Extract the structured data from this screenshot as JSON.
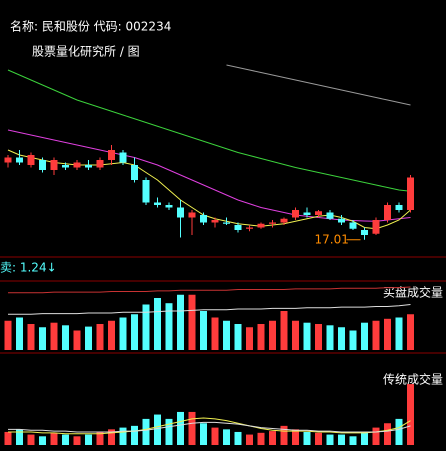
{
  "chart_data": [
    {
      "type": "candlestick",
      "title": "名称: 民和股份 代码: 002234",
      "subtitle": "股票量化研究所 / 图",
      "annotation": "17.01",
      "label": "卖: 1.24↓",
      "up_color": "#ff3c3c",
      "down_color": "#54ffff",
      "ylim": [
        16.6,
        26.6
      ],
      "open": [
        20.1,
        20.3,
        20.0,
        20.2,
        19.8,
        20.0,
        19.9,
        20.0,
        19.9,
        20.2,
        20.5,
        20.0,
        19.4,
        18.5,
        18.4,
        18.3,
        17.9,
        18.0,
        17.7,
        17.7,
        17.6,
        17.45,
        17.5,
        17.65,
        17.7,
        17.9,
        18.1,
        18.0,
        18.1,
        17.85,
        17.7,
        17.4,
        17.25,
        17.8,
        18.4,
        18.2
      ],
      "high": [
        20.4,
        20.6,
        20.5,
        20.3,
        20.3,
        20.1,
        20.2,
        20.2,
        20.3,
        20.8,
        20.6,
        20.3,
        19.5,
        18.7,
        18.5,
        18.6,
        18.2,
        18.1,
        17.9,
        17.9,
        17.7,
        17.6,
        17.7,
        17.8,
        17.9,
        18.3,
        18.3,
        18.2,
        18.2,
        18.0,
        17.8,
        17.5,
        17.9,
        18.5,
        18.5,
        19.6
      ],
      "low": [
        19.9,
        20.0,
        19.9,
        19.7,
        19.6,
        19.8,
        19.8,
        19.8,
        19.8,
        20.0,
        20.0,
        19.3,
        18.4,
        18.3,
        18.2,
        17.1,
        17.2,
        17.6,
        17.5,
        17.6,
        17.3,
        17.35,
        17.45,
        17.5,
        17.6,
        17.8,
        17.9,
        17.9,
        17.8,
        17.6,
        17.4,
        17.01,
        17.2,
        17.7,
        18.1,
        18.1
      ],
      "close": [
        20.3,
        20.1,
        20.4,
        19.8,
        20.2,
        19.9,
        20.1,
        19.9,
        20.2,
        20.6,
        20.1,
        19.4,
        18.5,
        18.4,
        18.3,
        17.9,
        18.1,
        17.7,
        17.8,
        17.65,
        17.4,
        17.5,
        17.65,
        17.7,
        17.85,
        18.2,
        18.0,
        18.15,
        17.85,
        17.7,
        17.45,
        17.2,
        17.8,
        18.4,
        18.2,
        19.5
      ],
      "series": [
        {
          "color": "#9a9a9a",
          "values": [
            null,
            null,
            null,
            null,
            null,
            null,
            null,
            null,
            null,
            null,
            null,
            null,
            null,
            null,
            null,
            null,
            null,
            null,
            null,
            24.0,
            23.9,
            23.8,
            23.7,
            23.6,
            23.5,
            23.4,
            23.3,
            23.2,
            23.1,
            23.0,
            22.9,
            22.8,
            22.7,
            22.6,
            22.5,
            22.4
          ]
        },
        {
          "color": "#3cd23c",
          "values": [
            23.8,
            23.6,
            23.4,
            23.2,
            23.0,
            22.8,
            22.6,
            22.45,
            22.3,
            22.15,
            22.0,
            21.85,
            21.7,
            21.55,
            21.4,
            21.25,
            21.1,
            20.95,
            20.8,
            20.65,
            20.5,
            20.38,
            20.26,
            20.14,
            20.02,
            19.9,
            19.8,
            19.7,
            19.6,
            19.5,
            19.4,
            19.3,
            19.2,
            19.1,
            19.0,
            18.95
          ]
        },
        {
          "color": "#e040e0",
          "values": [
            21.4,
            21.3,
            21.2,
            21.1,
            21.0,
            20.9,
            20.8,
            20.7,
            20.6,
            20.5,
            20.4,
            20.3,
            20.15,
            20.0,
            19.8,
            19.6,
            19.4,
            19.2,
            19.0,
            18.8,
            18.6,
            18.45,
            18.3,
            18.2,
            18.1,
            18.0,
            17.95,
            17.9,
            17.85,
            17.8,
            17.78,
            17.76,
            17.75,
            17.8,
            17.85,
            17.9
          ]
        },
        {
          "color": "#f0f050",
          "values": [
            20.6,
            20.4,
            20.3,
            20.2,
            20.1,
            20.05,
            20.0,
            20.0,
            20.0,
            20.05,
            20.1,
            20.0,
            19.7,
            19.4,
            19.0,
            18.6,
            18.3,
            18.0,
            17.85,
            17.75,
            17.65,
            17.6,
            17.55,
            17.6,
            17.65,
            17.75,
            17.85,
            17.95,
            18.0,
            17.9,
            17.75,
            17.5,
            17.45,
            17.6,
            17.8,
            18.2
          ]
        }
      ]
    },
    {
      "type": "bar",
      "label": "买盘成交量",
      "up_color": "#ff3c3c",
      "down_color": "#54ffff",
      "ylim": [
        0,
        100
      ],
      "values": [
        45,
        50,
        40,
        35,
        42,
        38,
        30,
        36,
        40,
        45,
        50,
        55,
        70,
        80,
        72,
        85,
        85,
        60,
        50,
        45,
        40,
        35,
        40,
        45,
        60,
        45,
        42,
        40,
        38,
        35,
        30,
        42,
        45,
        48,
        50,
        55
      ],
      "series": [
        {
          "color": "#c83232",
          "values": [
            88,
            88,
            88,
            88,
            89,
            89,
            89,
            89,
            89,
            90,
            90,
            90,
            90,
            91,
            91,
            92,
            92,
            92,
            92,
            92,
            93,
            93,
            93,
            93,
            93,
            94,
            94,
            94,
            94,
            95,
            95,
            95,
            95,
            96,
            96,
            97
          ]
        },
        {
          "color": "#dddddd",
          "values": [
            55,
            55,
            55,
            56,
            56,
            56,
            56,
            57,
            57,
            57,
            58,
            58,
            58,
            59,
            60,
            60,
            61,
            62,
            62,
            62,
            63,
            63,
            63,
            64,
            64,
            64,
            65,
            65,
            65,
            66,
            66,
            66,
            67,
            67,
            68,
            70
          ]
        }
      ]
    },
    {
      "type": "bar",
      "label": "传统成交量",
      "up_color": "#ff3c3c",
      "down_color": "#54ffff",
      "ylim": [
        0,
        100
      ],
      "values": [
        15,
        18,
        12,
        10,
        14,
        12,
        10,
        12,
        15,
        18,
        20,
        22,
        30,
        35,
        30,
        38,
        38,
        25,
        20,
        18,
        15,
        12,
        14,
        16,
        22,
        18,
        15,
        14,
        12,
        12,
        10,
        15,
        20,
        25,
        30,
        70
      ],
      "series": [
        {
          "color": "#f0f050",
          "values": [
            15,
            15,
            15,
            14,
            14,
            13,
            13,
            13,
            13,
            14,
            15,
            16,
            18,
            21,
            24,
            27,
            30,
            31,
            30,
            28,
            25,
            22,
            19,
            17,
            16,
            16,
            16,
            15,
            15,
            14,
            14,
            14,
            15,
            17,
            20,
            28
          ]
        },
        {
          "color": "#dddddd",
          "values": [
            18,
            18,
            17,
            17,
            16,
            16,
            15,
            15,
            15,
            15,
            16,
            16,
            17,
            19,
            21,
            23,
            25,
            26,
            26,
            25,
            24,
            22,
            20,
            19,
            18,
            17,
            17,
            16,
            16,
            15,
            15,
            15,
            15,
            16,
            18,
            22
          ]
        }
      ]
    }
  ]
}
